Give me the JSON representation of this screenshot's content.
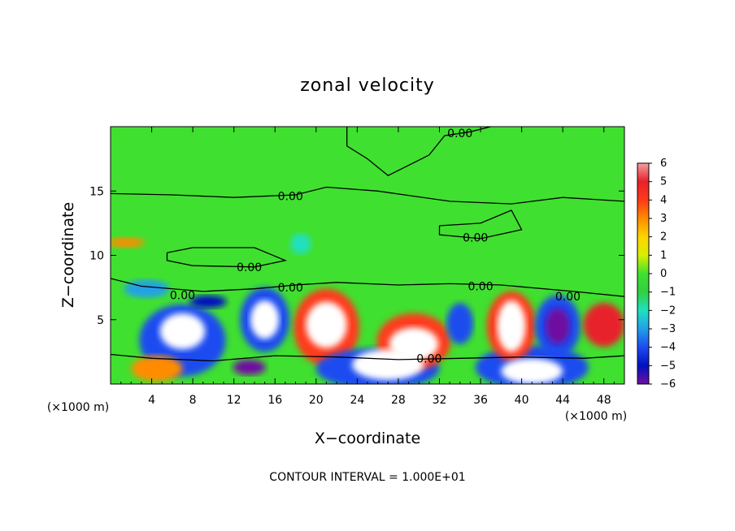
{
  "chart_data": {
    "type": "heatmap",
    "title": "zonal velocity",
    "xlabel": "X−coordinate",
    "ylabel": "Z−coordinate",
    "x_unit": "(×1000 m)",
    "y_unit": "(×1000 m)",
    "xlim": [
      0,
      50
    ],
    "ylim": [
      0,
      20
    ],
    "x_ticks": [
      4,
      8,
      12,
      16,
      20,
      24,
      28,
      32,
      36,
      40,
      44,
      48
    ],
    "x_tick_labels": [
      "4",
      "8",
      "12",
      "16",
      "20",
      "24",
      "28",
      "32",
      "36",
      "40",
      "44",
      "48"
    ],
    "y_ticks": [
      5,
      10,
      15
    ],
    "y_tick_labels": [
      "5",
      "10",
      "15"
    ],
    "colorbar": {
      "min": -6,
      "max": 6,
      "ticks": [
        6,
        5,
        4,
        3,
        2,
        1,
        0,
        -1,
        -2,
        -3,
        -4,
        -5,
        -6
      ],
      "tick_labels": [
        "6",
        "5",
        "4",
        "3",
        "2",
        "1",
        "0",
        "−1",
        "−2",
        "−3",
        "−4",
        "−5",
        "−6"
      ],
      "colors": [
        "#f4a0a0",
        "#e8202a",
        "#ff3a1a",
        "#ff8c00",
        "#ffd400",
        "#d8ee00",
        "#40e030",
        "#30d040",
        "#20e0c0",
        "#20a0e8",
        "#1e4bf0",
        "#0010c0",
        "#7010a0"
      ]
    },
    "background_value": 0.3,
    "features": [
      {
        "x": 7,
        "z": 4.1,
        "value": 6,
        "rx": 2.2,
        "rz": 1.4
      },
      {
        "x": 7,
        "z": 3.4,
        "value": -4,
        "rx": 4.2,
        "rz": 2.8
      },
      {
        "x": 15,
        "z": 5.0,
        "value": 6,
        "rx": 1.4,
        "rz": 1.5
      },
      {
        "x": 15,
        "z": 5.0,
        "value": -4,
        "rx": 2.4,
        "rz": 2.5
      },
      {
        "x": 21,
        "z": 4.6,
        "value": 6,
        "rx": 2.0,
        "rz": 1.8
      },
      {
        "x": 21,
        "z": 4.4,
        "value": 4,
        "rx": 3.2,
        "rz": 3.0
      },
      {
        "x": 29.5,
        "z": 3.1,
        "value": 6,
        "rx": 2.4,
        "rz": 1.3
      },
      {
        "x": 29.5,
        "z": 3.3,
        "value": 4,
        "rx": 3.6,
        "rz": 2.2
      },
      {
        "x": 27,
        "z": 1.5,
        "value": 6,
        "rx": 3.5,
        "rz": 1.2
      },
      {
        "x": 26,
        "z": 1.2,
        "value": -4,
        "rx": 6.0,
        "rz": 1.6
      },
      {
        "x": 34,
        "z": 4.7,
        "value": -4,
        "rx": 1.3,
        "rz": 1.6
      },
      {
        "x": 39,
        "z": 4.5,
        "value": 6,
        "rx": 1.4,
        "rz": 2.0
      },
      {
        "x": 39,
        "z": 4.5,
        "value": 4,
        "rx": 2.4,
        "rz": 2.7
      },
      {
        "x": 43.5,
        "z": 4.5,
        "value": -6,
        "rx": 1.2,
        "rz": 1.4
      },
      {
        "x": 43.5,
        "z": 4.5,
        "value": -4,
        "rx": 2.2,
        "rz": 2.4
      },
      {
        "x": 48,
        "z": 4.6,
        "value": 5,
        "rx": 2.0,
        "rz": 1.7
      },
      {
        "x": 41,
        "z": 1.0,
        "value": 6,
        "rx": 3.0,
        "rz": 1.0
      },
      {
        "x": 41,
        "z": 1.3,
        "value": -4,
        "rx": 5.5,
        "rz": 1.7
      },
      {
        "x": 9.5,
        "z": 6.4,
        "value": -5,
        "rx": 1.8,
        "rz": 0.5
      },
      {
        "x": 3.5,
        "z": 7.4,
        "value": -3,
        "rx": 2.2,
        "rz": 0.7
      },
      {
        "x": 4.5,
        "z": 1.2,
        "value": 3,
        "rx": 2.5,
        "rz": 1.0
      },
      {
        "x": 18.5,
        "z": 10.9,
        "value": -2,
        "rx": 1.0,
        "rz": 0.8
      },
      {
        "x": 1.5,
        "z": 11.0,
        "value": 3,
        "rx": 1.8,
        "rz": 0.4
      },
      {
        "x": 13.5,
        "z": 1.3,
        "value": -6,
        "rx": 1.6,
        "rz": 0.6
      }
    ],
    "contour_labels": [
      {
        "x": 34.0,
        "z": 19.5,
        "text": "0.00"
      },
      {
        "x": 17.5,
        "z": 14.6,
        "text": "0.00"
      },
      {
        "x": 35.5,
        "z": 11.4,
        "text": "0.00"
      },
      {
        "x": 13.5,
        "z": 9.1,
        "text": "0.00"
      },
      {
        "x": 17.5,
        "z": 7.5,
        "text": "0.00"
      },
      {
        "x": 7.0,
        "z": 6.9,
        "text": "0.00"
      },
      {
        "x": 36.0,
        "z": 7.6,
        "text": "0.00"
      },
      {
        "x": 44.5,
        "z": 6.8,
        "text": "0.00"
      },
      {
        "x": 31.0,
        "z": 2.0,
        "text": "0.00"
      }
    ],
    "contour_lines": [
      [
        [
          23,
          20
        ],
        [
          23,
          18.5
        ],
        [
          25,
          17.5
        ],
        [
          27,
          16.2
        ],
        [
          29,
          17.0
        ],
        [
          31,
          17.8
        ],
        [
          32.5,
          19.3
        ],
        [
          35,
          19.6
        ],
        [
          37,
          20
        ]
      ],
      [
        [
          0,
          14.8
        ],
        [
          6,
          14.7
        ],
        [
          12,
          14.5
        ],
        [
          18,
          14.7
        ],
        [
          21,
          15.3
        ],
        [
          26,
          15.0
        ],
        [
          33,
          14.2
        ],
        [
          39,
          14.0
        ],
        [
          44,
          14.5
        ],
        [
          50,
          14.2
        ]
      ],
      [
        [
          32,
          12.3
        ],
        [
          36,
          12.5
        ],
        [
          39,
          13.5
        ],
        [
          40,
          12.0
        ],
        [
          36,
          11.3
        ],
        [
          32,
          11.6
        ],
        [
          32,
          12.3
        ]
      ],
      [
        [
          5.5,
          10.2
        ],
        [
          8,
          10.6
        ],
        [
          14,
          10.6
        ],
        [
          17,
          9.6
        ],
        [
          14,
          9.1
        ],
        [
          8,
          9.2
        ],
        [
          5.5,
          9.6
        ],
        [
          5.5,
          10.2
        ]
      ],
      [
        [
          0,
          8.2
        ],
        [
          3,
          7.6
        ],
        [
          9,
          7.2
        ],
        [
          14,
          7.4
        ],
        [
          18,
          7.7
        ],
        [
          22,
          7.9
        ],
        [
          28,
          7.7
        ],
        [
          33,
          7.8
        ],
        [
          38,
          7.7
        ],
        [
          45,
          7.2
        ],
        [
          50,
          6.8
        ]
      ],
      [
        [
          0,
          2.3
        ],
        [
          4,
          2.0
        ],
        [
          10,
          1.8
        ],
        [
          16,
          2.2
        ],
        [
          22,
          2.1
        ],
        [
          28,
          1.9
        ],
        [
          34,
          2.0
        ],
        [
          40,
          2.1
        ],
        [
          46,
          2.0
        ],
        [
          50,
          2.2
        ]
      ]
    ]
  },
  "footer": {
    "contour_interval_text": "CONTOUR INTERVAL = 1.000E+01"
  }
}
